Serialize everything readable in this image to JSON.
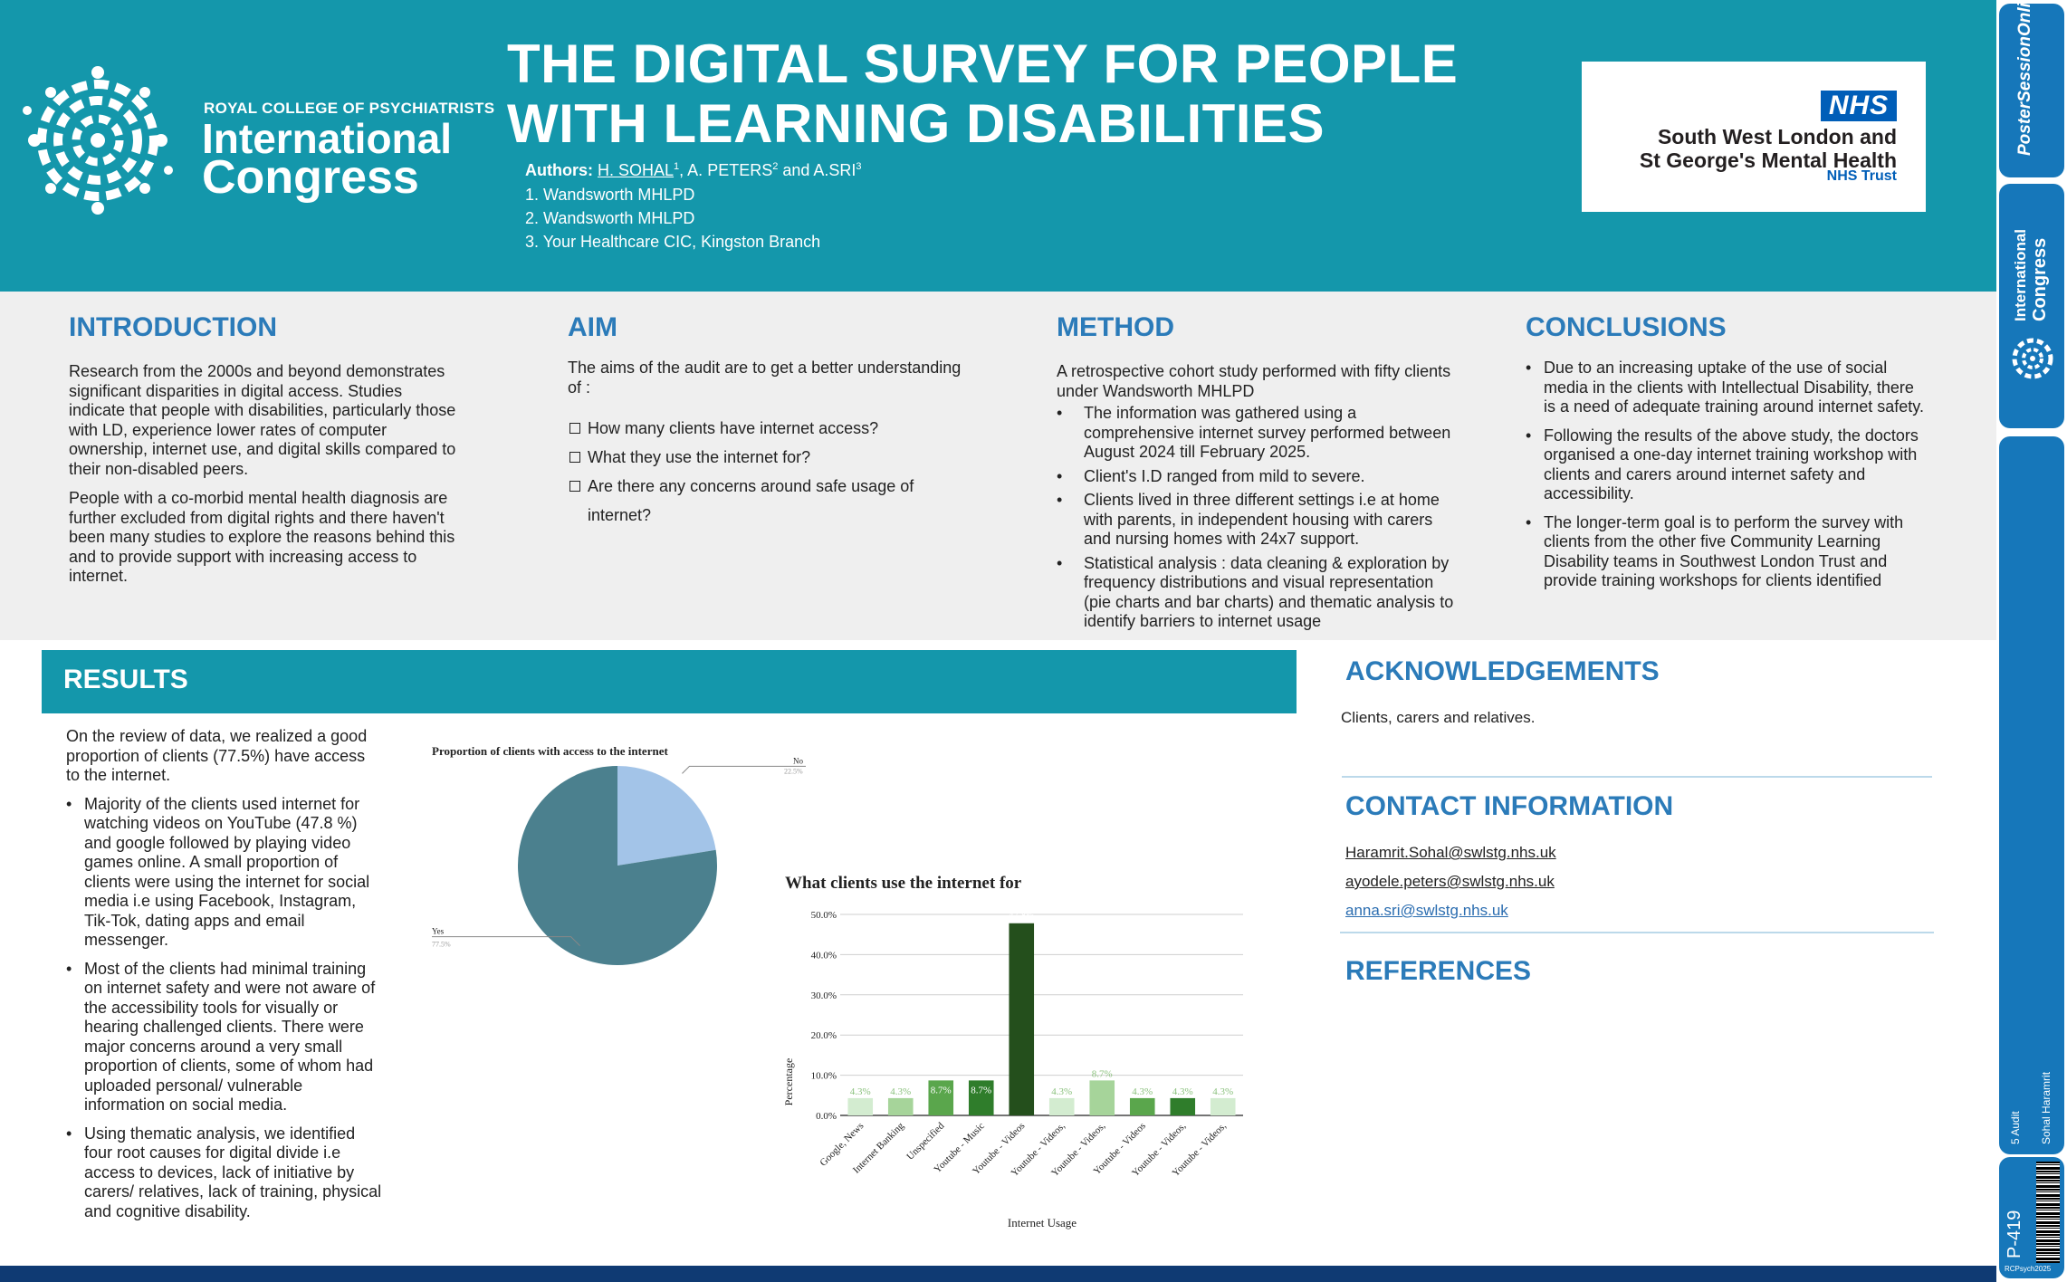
{
  "header": {
    "college": "ROYAL COLLEGE OF PSYCHIATRISTS",
    "intl": "International",
    "congress": "Congress",
    "title_line1": "THE DIGITAL SURVEY FOR PEOPLE",
    "title_line2": "WITH LEARNING DISABILITIES",
    "authors_label": "Authors:",
    "author1": "H. SOHAL",
    "author1_sup": "1",
    "author2": ", A. PETERS",
    "author2_sup": "2",
    "author3": " and  A.SRI",
    "author3_sup": "3",
    "affiliations": [
      "1. Wandsworth MHLPD",
      "2. Wandsworth MHLPD",
      "3. Your Healthcare CIC, Kingston Branch"
    ],
    "nhs_badge": "NHS",
    "nhs_org_line1": "South West London and",
    "nhs_org_line2": "St George's Mental Health",
    "nhs_trust": "NHS Trust"
  },
  "introduction": {
    "heading": "INTRODUCTION",
    "p1": "Research from the 2000s and beyond demonstrates significant disparities in digital access. Studies indicate that people with disabilities, particularly those with LD, experience lower rates of computer ownership, internet use, and digital skills compared to their non-disabled peers.",
    "p2": "People with a co-morbid mental health diagnosis are further excluded from digital rights and there haven't been many studies to explore the reasons behind this and to provide support with increasing access to internet."
  },
  "aim": {
    "heading": "AIM",
    "intro": "The aims of the audit are to get a better understanding of :",
    "items": [
      "How many clients have internet access?",
      "What they use the internet for?",
      "Are there any concerns around safe usage of internet?"
    ]
  },
  "method": {
    "heading": "METHOD",
    "intro": "A retrospective cohort study performed with fifty clients under  Wandsworth MHLPD",
    "items": [
      "The information was gathered using a comprehensive internet survey  performed between August 2024 till February 2025.",
      "Client's I.D ranged from mild to severe.",
      "Clients lived in three different settings i.e at home with parents, in independent housing with carers and nursing homes with 24x7 support.",
      "Statistical analysis : data cleaning & exploration by frequency distributions and visual representation (pie charts and bar charts) and thematic analysis to identify barriers to internet usage"
    ]
  },
  "conclusions": {
    "heading": "CONCLUSIONS",
    "items": [
      "Due to an increasing uptake of the use of social media in the clients with Intellectual Disability, there is a need of adequate training around internet safety.",
      "Following the results of the above study, the doctors organised a one-day internet training workshop with clients and carers around internet safety and accessibility.",
      "The longer-term goal is to perform the survey with clients from the other five Community Learning Disability teams in Southwest London Trust and provide training workshops for clients identified"
    ]
  },
  "results": {
    "heading": "RESULTS",
    "intro": "On the review of data, we realized a good proportion of clients (77.5%) have access to the internet.",
    "items": [
      "Majority of the clients used internet for watching videos on YouTube (47.8 %) and google followed by playing video games online. A small proportion of clients were using the internet for social media i.e using Facebook, Instagram, Tik-Tok, dating apps and email messenger.",
      "Most of the clients had minimal training on internet safety and were not aware of the accessibility tools for visually or hearing challenged clients. There were major concerns around a very small proportion of clients, some of whom had uploaded personal/ vulnerable information on social media.",
      "Using thematic analysis, we identified four root causes for digital divide i.e access to devices, lack of initiative by carers/ relatives, lack of training, physical and cognitive disability."
    ]
  },
  "acknowledgements": {
    "heading": "ACKNOWLEDGEMENTS",
    "text": "Clients, carers and relatives."
  },
  "contact": {
    "heading": "CONTACT INFORMATION",
    "emails": [
      "Haramrit.Sohal@swlstg.nhs.uk",
      "ayodele.peters@swlstg.nhs.uk",
      "anna.sri@swlstg.nhs.uk"
    ]
  },
  "references": {
    "heading": "REFERENCES"
  },
  "strip": {
    "poster_session": "PosterSessionOnline",
    "intl": "International",
    "congress": "Congress",
    "audit": "5 Audit",
    "author": "Sohal Haramrit",
    "poster_id": "P-419",
    "event": "RCPsych2025"
  },
  "colors": {
    "teal": "#1497ab",
    "heading_blue": "#2b7bb9",
    "strip_blue": "#1677ba",
    "pie_main": "#4b808e",
    "pie_light": "#a3c4e8"
  },
  "chart_data": [
    {
      "type": "pie",
      "title": "Proportion of clients with access to the internet",
      "categories": [
        "Yes",
        "No"
      ],
      "values": [
        77.5,
        22.5
      ],
      "labels": [
        "77.5%",
        "22.5%"
      ],
      "colors": [
        "#4b808e",
        "#a3c4e8"
      ]
    },
    {
      "type": "bar",
      "title": "What clients use the internet for",
      "xlabel": "Internet Usage",
      "ylabel": "Percentage",
      "ylim": [
        0,
        50
      ],
      "yticks": [
        "0.0%",
        "10.0%",
        "20.0%",
        "30.0%",
        "40.0%",
        "50.0%"
      ],
      "yticks_values": [
        0,
        10,
        20,
        30,
        40,
        50
      ],
      "categories": [
        "Google, News",
        "Internet Banking",
        "Unspecified",
        "Youtube - Music",
        "Youtube - Videos",
        "Youtube - Videos,",
        "Youtube - Videos,",
        "Youtube - Videos",
        "Youtube - Videos,",
        "Youtube - Videos,"
      ],
      "values": [
        4.3,
        4.3,
        8.7,
        8.7,
        47.8,
        4.3,
        8.7,
        4.3,
        4.3,
        4.3
      ],
      "labels": [
        "4.3%",
        "4.3%",
        "8.7%",
        "8.7%",
        "47.8%",
        "4.3%",
        "8.7%",
        "4.3%",
        "4.3%",
        "4.3%"
      ],
      "colors": [
        "#d3ecd0",
        "#a6d49a",
        "#5aa64c",
        "#2f7d2b",
        "#244f1c",
        "#d3ecd0",
        "#a6d49a",
        "#5aa64c",
        "#2f7d2b",
        "#d3ecd0"
      ]
    }
  ]
}
